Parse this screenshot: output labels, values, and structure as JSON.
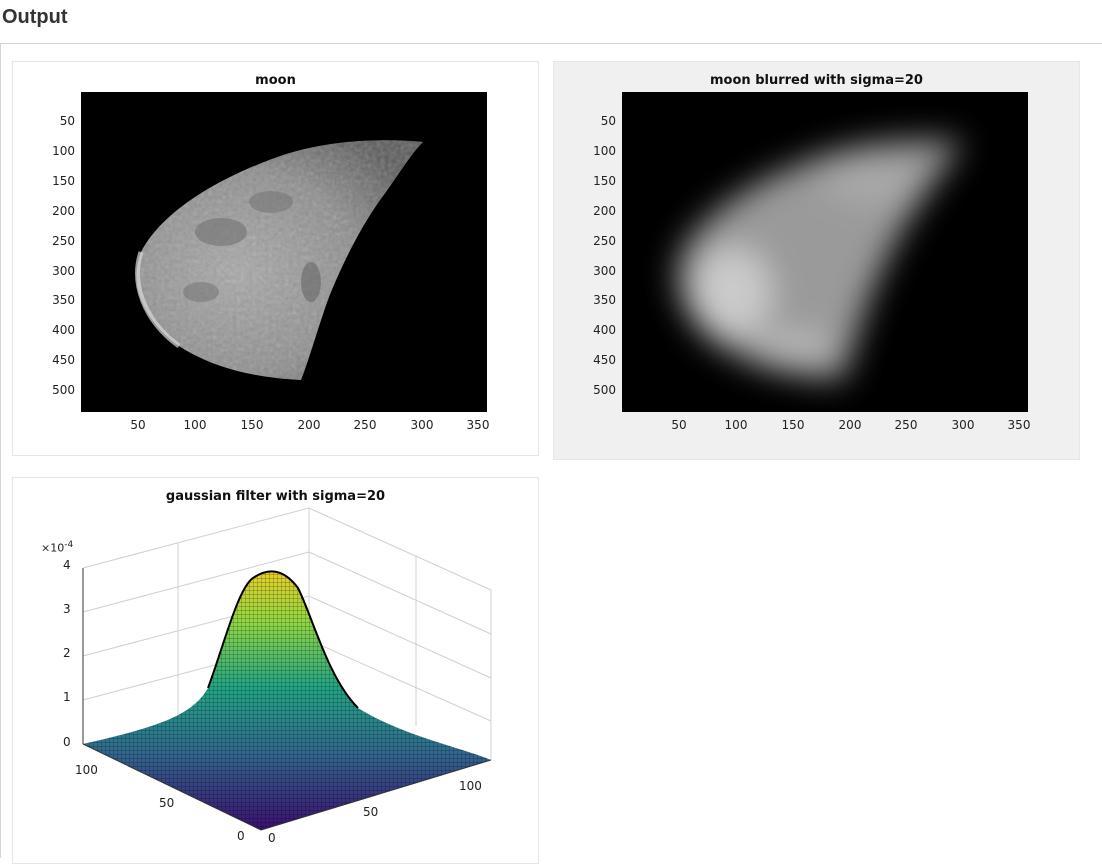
{
  "section": {
    "heading": "Output"
  },
  "figures": [
    {
      "title": "moon",
      "yticks": [
        "50",
        "100",
        "150",
        "200",
        "250",
        "300",
        "350",
        "400",
        "450",
        "500"
      ],
      "xticks": [
        "50",
        "100",
        "150",
        "200",
        "250",
        "300",
        "350"
      ]
    },
    {
      "title": "moon blurred with sigma=20",
      "yticks": [
        "50",
        "100",
        "150",
        "200",
        "250",
        "300",
        "350",
        "400",
        "450",
        "500"
      ],
      "xticks": [
        "50",
        "100",
        "150",
        "200",
        "250",
        "300",
        "350"
      ]
    },
    {
      "title": "gaussian filter with sigma=20",
      "zscale": "×10",
      "zexp": "-4",
      "zticks": [
        "4",
        "3",
        "2",
        "1",
        "0"
      ],
      "yticks": [
        "100",
        "50",
        "0"
      ],
      "xticks": [
        "0",
        "50",
        "100"
      ]
    }
  ]
}
